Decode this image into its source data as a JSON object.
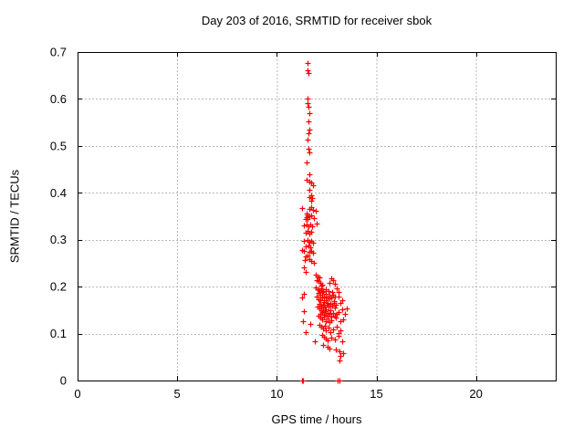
{
  "window": {
    "background": "#ffffff"
  },
  "chart_data": {
    "type": "scatter",
    "title": "Day 203 of 2016, SRMTID for receiver sbok",
    "xlabel": "GPS time / hours",
    "ylabel": "SRMTID / TECUs",
    "xlim": [
      0,
      24
    ],
    "ylim": [
      0,
      0.7
    ],
    "xticks": [
      0,
      5,
      10,
      15,
      20
    ],
    "xtick_labels": [
      "0",
      "5",
      "10",
      "15",
      "20"
    ],
    "yticks": [
      0,
      0.1,
      0.2,
      0.3,
      0.4,
      0.5,
      0.6,
      0.7
    ],
    "ytick_labels": [
      "0",
      "0.1",
      "0.2",
      "0.3",
      "0.4",
      "0.5",
      "0.6",
      "0.7"
    ],
    "grid": true,
    "grid_style": "dashed",
    "grid_color": "#b8b8b8",
    "axis_color": "#000000",
    "legend": "none",
    "marker": "plus",
    "marker_color": "#ff0000",
    "series": [
      {
        "name": "SRMTID",
        "points": [
          [
            11.25,
            0
          ],
          [
            11.27,
            0
          ],
          [
            11.29,
            0
          ],
          [
            11.31,
            0
          ],
          [
            13.07,
            0
          ],
          [
            13.16,
            0
          ],
          [
            11.56,
            0.676
          ],
          [
            11.54,
            0.661
          ],
          [
            11.58,
            0.656
          ],
          [
            11.56,
            0.601
          ],
          [
            11.53,
            0.592
          ],
          [
            11.59,
            0.584
          ],
          [
            11.62,
            0.569
          ],
          [
            11.6,
            0.552
          ],
          [
            11.62,
            0.534
          ],
          [
            11.6,
            0.527
          ],
          [
            11.56,
            0.513
          ],
          [
            11.6,
            0.493
          ],
          [
            11.62,
            0.486
          ],
          [
            11.5,
            0.464
          ],
          [
            11.64,
            0.439
          ],
          [
            11.5,
            0.427
          ],
          [
            11.63,
            0.423
          ],
          [
            11.73,
            0.421
          ],
          [
            11.81,
            0.417
          ],
          [
            11.64,
            0.406
          ],
          [
            11.73,
            0.394
          ],
          [
            11.64,
            0.39
          ],
          [
            11.76,
            0.388
          ],
          [
            11.71,
            0.384
          ],
          [
            11.27,
            0.367
          ],
          [
            11.64,
            0.366
          ],
          [
            11.74,
            0.369
          ],
          [
            11.83,
            0.364
          ],
          [
            11.96,
            0.362
          ],
          [
            11.5,
            0.355
          ],
          [
            11.52,
            0.351
          ],
          [
            11.48,
            0.348
          ],
          [
            11.65,
            0.35
          ],
          [
            11.74,
            0.351
          ],
          [
            11.84,
            0.347
          ],
          [
            11.46,
            0.344
          ],
          [
            11.56,
            0.345
          ],
          [
            11.37,
            0.331
          ],
          [
            11.48,
            0.333
          ],
          [
            11.59,
            0.329
          ],
          [
            11.68,
            0.332
          ],
          [
            11.77,
            0.328
          ],
          [
            12.02,
            0.334
          ],
          [
            11.44,
            0.315
          ],
          [
            11.55,
            0.318
          ],
          [
            11.64,
            0.314
          ],
          [
            11.73,
            0.316
          ],
          [
            11.37,
            0.297
          ],
          [
            11.53,
            0.299
          ],
          [
            11.62,
            0.296
          ],
          [
            11.71,
            0.298
          ],
          [
            11.8,
            0.294
          ],
          [
            11.46,
            0.286
          ],
          [
            11.57,
            0.288
          ],
          [
            11.66,
            0.284
          ],
          [
            11.27,
            0.278
          ],
          [
            11.38,
            0.276
          ],
          [
            11.62,
            0.275
          ],
          [
            11.71,
            0.277
          ],
          [
            11.81,
            0.272
          ],
          [
            11.46,
            0.265
          ],
          [
            11.55,
            0.267
          ],
          [
            11.39,
            0.257
          ],
          [
            11.62,
            0.258
          ],
          [
            11.72,
            0.254
          ],
          [
            11.86,
            0.25
          ],
          [
            11.35,
            0.242
          ],
          [
            11.44,
            0.231
          ],
          [
            11.35,
            0.185
          ],
          [
            11.27,
            0.176
          ],
          [
            11.35,
            0.148
          ],
          [
            11.3,
            0.127
          ],
          [
            11.45,
            0.104
          ],
          [
            11.68,
            0.121
          ],
          [
            11.91,
            0.084
          ],
          [
            11.94,
            0.226
          ],
          [
            12.03,
            0.222
          ],
          [
            12.12,
            0.219
          ],
          [
            11.99,
            0.214
          ],
          [
            12.08,
            0.211
          ],
          [
            12.17,
            0.208
          ],
          [
            12.26,
            0.205
          ],
          [
            12.75,
            0.218
          ],
          [
            12.84,
            0.213
          ],
          [
            12.66,
            0.209
          ],
          [
            12.93,
            0.206
          ],
          [
            12.21,
            0.203
          ],
          [
            11.96,
            0.198
          ],
          [
            12.05,
            0.195
          ],
          [
            12.14,
            0.192
          ],
          [
            12.23,
            0.197
          ],
          [
            12.32,
            0.19
          ],
          [
            12.44,
            0.194
          ],
          [
            12.61,
            0.191
          ],
          [
            12.79,
            0.188
          ],
          [
            13.03,
            0.196
          ],
          [
            13.12,
            0.189
          ],
          [
            12.1,
            0.186
          ],
          [
            12.19,
            0.182
          ],
          [
            12.28,
            0.188
          ],
          [
            12.37,
            0.179
          ],
          [
            12.46,
            0.184
          ],
          [
            12.55,
            0.176
          ],
          [
            12.64,
            0.181
          ],
          [
            12.73,
            0.177
          ],
          [
            12.82,
            0.183
          ],
          [
            12.91,
            0.179
          ],
          [
            12.0,
            0.178
          ],
          [
            12.08,
            0.174
          ],
          [
            12.17,
            0.171
          ],
          [
            12.26,
            0.176
          ],
          [
            12.35,
            0.168
          ],
          [
            12.44,
            0.172
          ],
          [
            12.53,
            0.166
          ],
          [
            12.66,
            0.175
          ],
          [
            12.88,
            0.17
          ],
          [
            13.08,
            0.178
          ],
          [
            13.17,
            0.165
          ],
          [
            13.26,
            0.172
          ],
          [
            12.15,
            0.163
          ],
          [
            12.24,
            0.159
          ],
          [
            12.33,
            0.161
          ],
          [
            12.42,
            0.157
          ],
          [
            12.51,
            0.162
          ],
          [
            12.6,
            0.158
          ],
          [
            12.69,
            0.164
          ],
          [
            12.78,
            0.16
          ],
          [
            12.87,
            0.166
          ],
          [
            12.96,
            0.162
          ],
          [
            12.03,
            0.158
          ],
          [
            12.12,
            0.154
          ],
          [
            12.21,
            0.15
          ],
          [
            12.3,
            0.156
          ],
          [
            12.39,
            0.147
          ],
          [
            12.48,
            0.152
          ],
          [
            12.57,
            0.144
          ],
          [
            12.7,
            0.149
          ],
          [
            12.93,
            0.155
          ],
          [
            13.12,
            0.146
          ],
          [
            13.3,
            0.151
          ],
          [
            13.51,
            0.154
          ],
          [
            13.44,
            0.141
          ],
          [
            12.2,
            0.142
          ],
          [
            12.29,
            0.145
          ],
          [
            12.38,
            0.14
          ],
          [
            12.47,
            0.143
          ],
          [
            12.56,
            0.139
          ],
          [
            12.65,
            0.141
          ],
          [
            12.74,
            0.137
          ],
          [
            12.83,
            0.144
          ],
          [
            12.92,
            0.138
          ],
          [
            13.01,
            0.142
          ],
          [
            12.08,
            0.138
          ],
          [
            12.17,
            0.134
          ],
          [
            12.26,
            0.13
          ],
          [
            12.35,
            0.136
          ],
          [
            12.44,
            0.127
          ],
          [
            12.57,
            0.132
          ],
          [
            12.66,
            0.124
          ],
          [
            12.75,
            0.129
          ],
          [
            12.98,
            0.135
          ],
          [
            13.17,
            0.126
          ],
          [
            13.35,
            0.131
          ],
          [
            12.12,
            0.118
          ],
          [
            12.21,
            0.114
          ],
          [
            12.3,
            0.11
          ],
          [
            12.39,
            0.116
          ],
          [
            12.48,
            0.107
          ],
          [
            12.61,
            0.112
          ],
          [
            12.7,
            0.104
          ],
          [
            12.84,
            0.109
          ],
          [
            13.03,
            0.115
          ],
          [
            13.21,
            0.106
          ],
          [
            13.12,
            0.101
          ],
          [
            12.26,
            0.098
          ],
          [
            12.35,
            0.094
          ],
          [
            12.48,
            0.09
          ],
          [
            12.57,
            0.086
          ],
          [
            12.75,
            0.092
          ],
          [
            12.93,
            0.088
          ],
          [
            13.12,
            0.096
          ],
          [
            13.26,
            0.083
          ],
          [
            12.3,
            0.075
          ],
          [
            12.53,
            0.071
          ],
          [
            12.66,
            0.068
          ],
          [
            12.98,
            0.066
          ],
          [
            13.13,
            0.062
          ],
          [
            13.21,
            0.053
          ],
          [
            13.35,
            0.058
          ],
          [
            13.15,
            0.043
          ]
        ]
      }
    ]
  }
}
